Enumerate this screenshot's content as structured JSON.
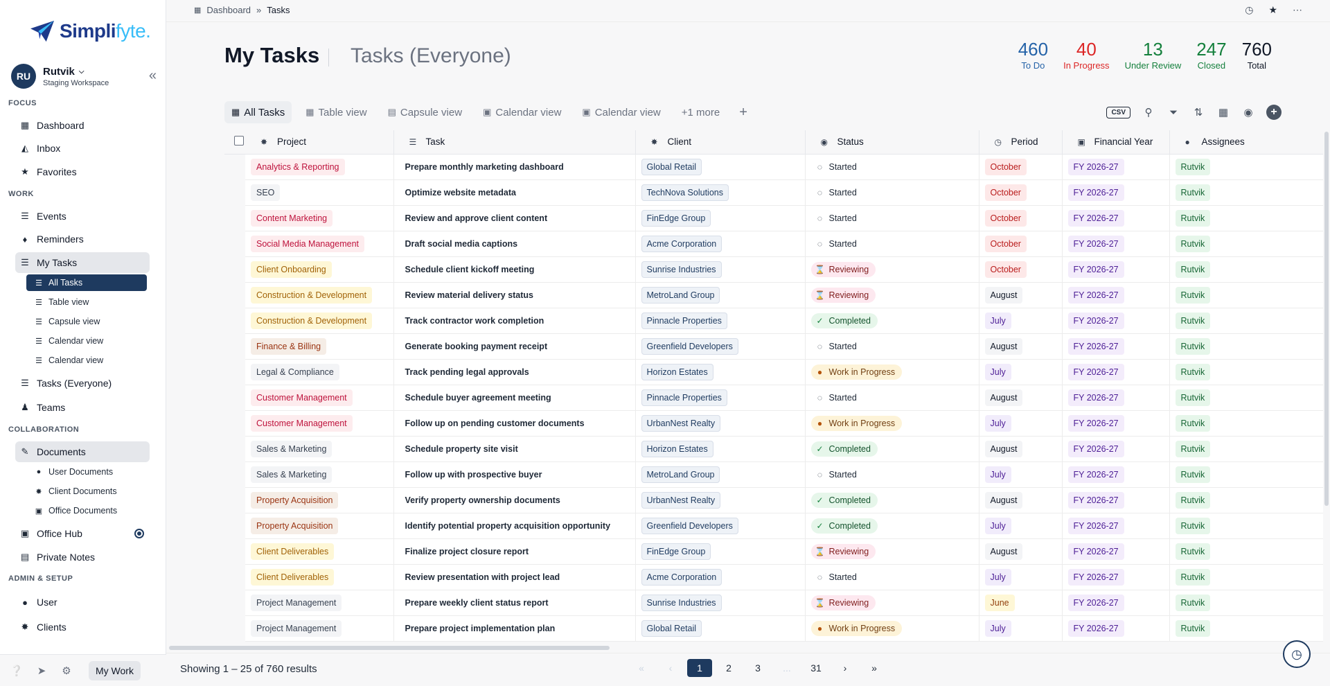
{
  "brand": {
    "name_main": "Simpli",
    "name_accent": "fyte."
  },
  "user": {
    "initials": "RU",
    "name": "Rutvik",
    "workspace": "Staging Workspace"
  },
  "sidebar": {
    "sections": {
      "focus": "FOCUS",
      "work": "WORK",
      "collaboration": "COLLABORATION",
      "admin": "ADMIN & SETUP"
    },
    "focus": [
      {
        "label": "Dashboard",
        "icon": "grid-icon"
      },
      {
        "label": "Inbox",
        "icon": "inbox-icon"
      },
      {
        "label": "Favorites",
        "icon": "star-icon"
      }
    ],
    "work": [
      {
        "label": "Events",
        "icon": "events-icon"
      },
      {
        "label": "Reminders",
        "icon": "bell-icon"
      },
      {
        "label": "My Tasks",
        "icon": "tasks-icon"
      }
    ],
    "my_tasks_sub": [
      "All Tasks",
      "Table view",
      "Capsule view",
      "Calendar view",
      "Calendar view"
    ],
    "work_more": [
      {
        "label": "Tasks (Everyone)",
        "icon": "tasks-icon"
      },
      {
        "label": "Teams",
        "icon": "teams-icon"
      }
    ],
    "collaboration": [
      {
        "label": "Documents",
        "icon": "documents-icon"
      }
    ],
    "documents_sub": [
      "User Documents",
      "Client Documents",
      "Office Documents"
    ],
    "collaboration_more": [
      {
        "label": "Office Hub",
        "icon": "office-hub-icon"
      },
      {
        "label": "Private Notes",
        "icon": "notes-icon"
      }
    ],
    "admin": [
      {
        "label": "User",
        "icon": "user-icon"
      },
      {
        "label": "Clients",
        "icon": "clients-icon"
      }
    ],
    "footer_button": "My Work"
  },
  "breadcrumb": {
    "root": "Dashboard",
    "current": "Tasks"
  },
  "header": {
    "title": "My Tasks",
    "alt_title": "Tasks (Everyone)"
  },
  "stats": [
    {
      "num": "460",
      "label": "To Do",
      "color": "#2563a8"
    },
    {
      "num": "40",
      "label": "In Progress",
      "color": "#dc2626"
    },
    {
      "num": "13",
      "label": "Under Review",
      "color": "#15803d"
    },
    {
      "num": "247",
      "label": "Closed",
      "color": "#15803d"
    },
    {
      "num": "760",
      "label": "Total",
      "color": "#111827"
    }
  ],
  "tabs": [
    "All Tasks",
    "Table view",
    "Capsule view",
    "Calendar view",
    "Calendar view",
    "+1 more"
  ],
  "toolbar": {
    "csv": "CSV"
  },
  "columns": [
    "Project",
    "Task",
    "Client",
    "Status",
    "Period",
    "Financial Year",
    "Assignees"
  ],
  "rows": [
    {
      "project": "Analytics & Reporting",
      "pc": "red",
      "task": "Prepare monthly marketing dashboard",
      "client": "Global Retail",
      "status": "Started",
      "period": "October",
      "fy": "FY 2026-27",
      "assignee": "Rutvik"
    },
    {
      "project": "SEO",
      "pc": "plain",
      "task": "Optimize website metadata",
      "client": "TechNova Solutions",
      "status": "Started",
      "period": "October",
      "fy": "FY 2026-27",
      "assignee": "Rutvik"
    },
    {
      "project": "Content Marketing",
      "pc": "red",
      "task": "Review and approve client content",
      "client": "FinEdge Group",
      "status": "Started",
      "period": "October",
      "fy": "FY 2026-27",
      "assignee": "Rutvik"
    },
    {
      "project": "Social Media Management",
      "pc": "red",
      "task": "Draft social media captions",
      "client": "Acme Corporation",
      "status": "Started",
      "period": "October",
      "fy": "FY 2026-27",
      "assignee": "Rutvik"
    },
    {
      "project": "Client Onboarding",
      "pc": "yellow",
      "task": "Schedule client kickoff meeting",
      "client": "Sunrise Industries",
      "status": "Reviewing",
      "period": "October",
      "fy": "FY 2026-27",
      "assignee": "Rutvik"
    },
    {
      "project": "Construction & Development",
      "pc": "yellow",
      "task": "Review material delivery status",
      "client": "MetroLand Group",
      "status": "Reviewing",
      "period": "August",
      "fy": "FY 2026-27",
      "assignee": "Rutvik"
    },
    {
      "project": "Construction & Development",
      "pc": "yellow",
      "task": "Track contractor work completion",
      "client": "Pinnacle Properties",
      "status": "Completed",
      "period": "July",
      "fy": "FY 2026-27",
      "assignee": "Rutvik"
    },
    {
      "project": "Finance & Billing",
      "pc": "brown",
      "task": "Generate booking payment receipt",
      "client": "Greenfield Developers",
      "status": "Started",
      "period": "August",
      "fy": "FY 2026-27",
      "assignee": "Rutvik"
    },
    {
      "project": "Legal & Compliance",
      "pc": "plain",
      "task": "Track pending legal approvals",
      "client": "Horizon Estates",
      "status": "Work in Progress",
      "period": "July",
      "fy": "FY 2026-27",
      "assignee": "Rutvik"
    },
    {
      "project": "Customer Management",
      "pc": "red",
      "task": "Schedule buyer agreement meeting",
      "client": "Pinnacle Properties",
      "status": "Started",
      "period": "August",
      "fy": "FY 2026-27",
      "assignee": "Rutvik"
    },
    {
      "project": "Customer Management",
      "pc": "red",
      "task": "Follow up on pending customer documents",
      "client": "UrbanNest Realty",
      "status": "Work in Progress",
      "period": "July",
      "fy": "FY 2026-27",
      "assignee": "Rutvik"
    },
    {
      "project": "Sales & Marketing",
      "pc": "plain",
      "task": "Schedule property site visit",
      "client": "Horizon Estates",
      "status": "Completed",
      "period": "August",
      "fy": "FY 2026-27",
      "assignee": "Rutvik"
    },
    {
      "project": "Sales & Marketing",
      "pc": "plain",
      "task": "Follow up with prospective buyer",
      "client": "MetroLand Group",
      "status": "Started",
      "period": "July",
      "fy": "FY 2026-27",
      "assignee": "Rutvik"
    },
    {
      "project": "Property Acquisition",
      "pc": "brown",
      "task": "Verify property ownership documents",
      "client": "UrbanNest Realty",
      "status": "Completed",
      "period": "August",
      "fy": "FY 2026-27",
      "assignee": "Rutvik"
    },
    {
      "project": "Property Acquisition",
      "pc": "brown",
      "task": "Identify potential property acquisition opportunity",
      "client": "Greenfield Developers",
      "status": "Completed",
      "period": "July",
      "fy": "FY 2026-27",
      "assignee": "Rutvik"
    },
    {
      "project": "Client Deliverables",
      "pc": "yellow",
      "task": "Finalize project closure report",
      "client": "FinEdge Group",
      "status": "Reviewing",
      "period": "August",
      "fy": "FY 2026-27",
      "assignee": "Rutvik"
    },
    {
      "project": "Client Deliverables",
      "pc": "yellow",
      "task": "Review presentation with project lead",
      "client": "Acme Corporation",
      "status": "Started",
      "period": "July",
      "fy": "FY 2026-27",
      "assignee": "Rutvik"
    },
    {
      "project": "Project Management",
      "pc": "plain",
      "task": "Prepare weekly client status report",
      "client": "Sunrise Industries",
      "status": "Reviewing",
      "period": "June",
      "fy": "FY 2026-27",
      "assignee": "Rutvik"
    },
    {
      "project": "Project Management",
      "pc": "plain",
      "task": "Prepare project implementation plan",
      "client": "Global Retail",
      "status": "Work in Progress",
      "period": "July",
      "fy": "FY 2026-27",
      "assignee": "Rutvik"
    }
  ],
  "footer": {
    "results": "Showing 1 – 25 of 760 results",
    "pages": [
      "«",
      "‹",
      "1",
      "2",
      "3",
      "...",
      "31",
      "›",
      "»"
    ],
    "active_page": "1"
  }
}
